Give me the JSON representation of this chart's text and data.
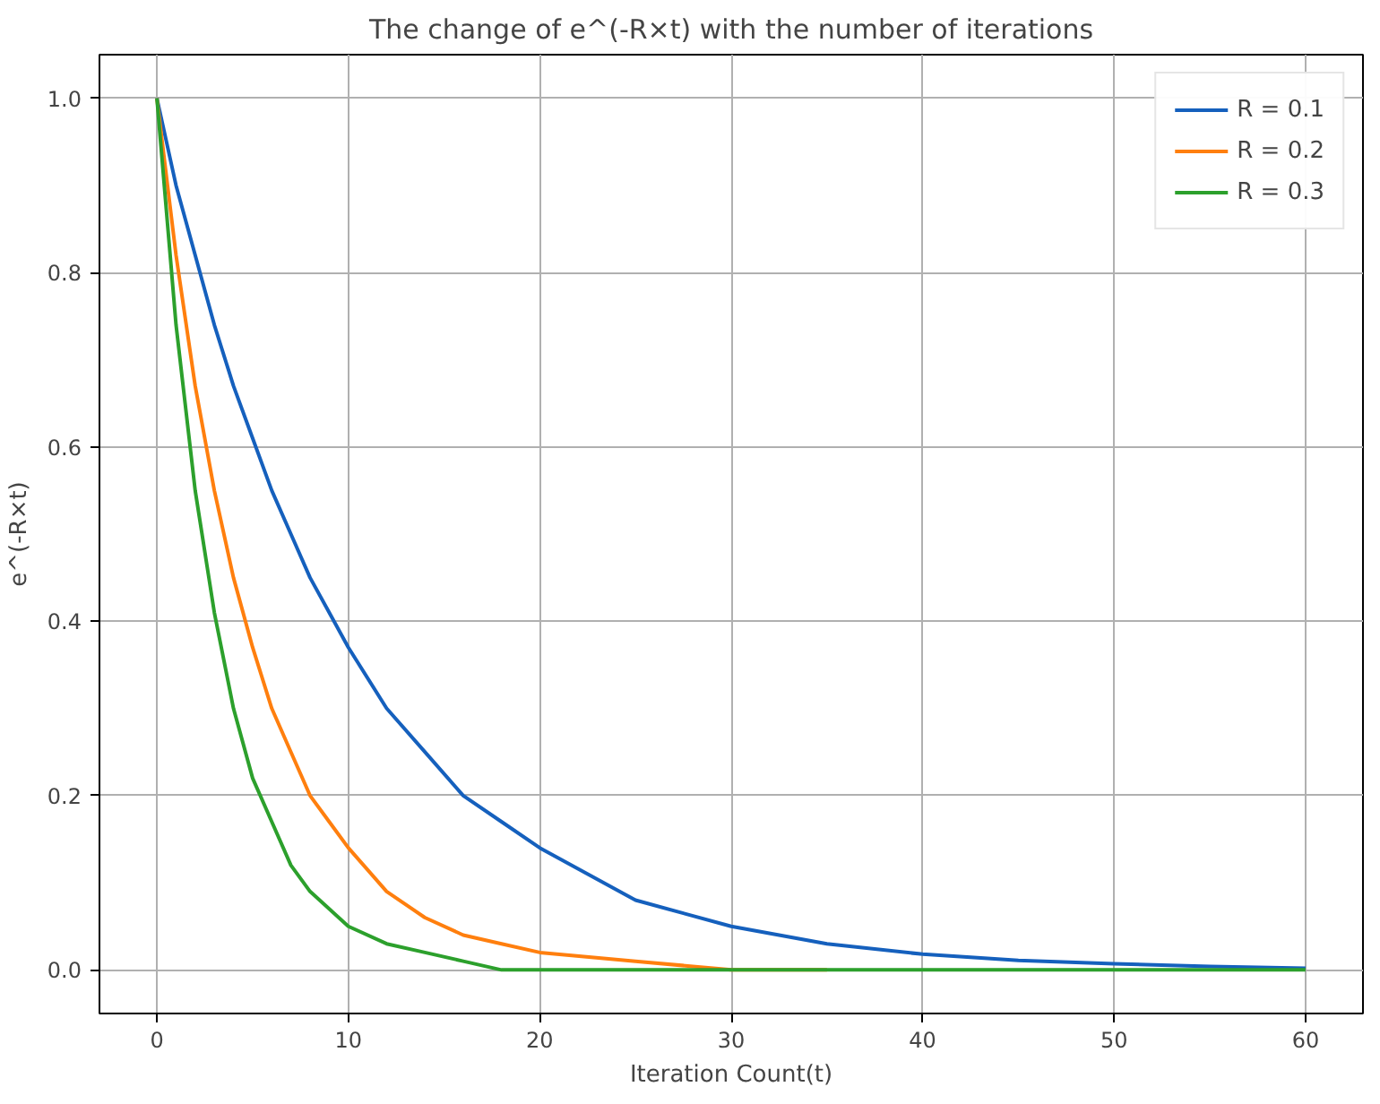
{
  "chart_data": {
    "type": "line",
    "title": "The change of e^(-R×t) with the number of iterations",
    "xlabel": "Iteration Count(t)",
    "ylabel": "e^(-R×t)",
    "x": [
      0,
      1,
      2,
      3,
      4,
      5,
      6,
      7,
      8,
      9,
      10,
      12,
      14,
      16,
      18,
      20,
      25,
      30,
      35,
      40,
      45,
      50,
      55,
      60
    ],
    "series": [
      {
        "name": "R = 0.1",
        "color": "#1560bd",
        "values": [
          1,
          0.9,
          0.82,
          0.74,
          0.67,
          0.61,
          0.55,
          0.5,
          0.45,
          0.41,
          0.37,
          0.3,
          0.25,
          0.2,
          0.17,
          0.14,
          0.08,
          0.05,
          0.03,
          0.018,
          0.011,
          0.007,
          0.004,
          0.002
        ]
      },
      {
        "name": "R = 0.2",
        "color": "#ff7f0e",
        "x": [
          0,
          1,
          2,
          3,
          4,
          5,
          6,
          7,
          8,
          9,
          10,
          12,
          14,
          16,
          18,
          20,
          25,
          30,
          35
        ],
        "values": [
          1,
          0.82,
          0.67,
          0.55,
          0.45,
          0.37,
          0.3,
          0.25,
          0.2,
          0.17,
          0.14,
          0.09,
          0.06,
          0.04,
          0.03,
          0.02,
          0.01,
          0.0,
          0.0
        ]
      },
      {
        "name": "R = 0.3",
        "color": "#2ca02c",
        "values": [
          1,
          0.74,
          0.55,
          0.41,
          0.3,
          0.22,
          0.17,
          0.12,
          0.09,
          0.07,
          0.05,
          0.03,
          0.02,
          0.01,
          0.0,
          0.0,
          0.0,
          0.0,
          0.0,
          0.0,
          0.0,
          0.0,
          0.0,
          0.0
        ]
      }
    ],
    "xlim": [
      -3,
      63
    ],
    "ylim": [
      -0.05,
      1.05
    ],
    "xticks": [
      0,
      10,
      20,
      30,
      40,
      50,
      60
    ],
    "yticks": [
      {
        "value": 0,
        "label": "0.0"
      },
      {
        "value": 0.2,
        "label": "0.2"
      },
      {
        "value": 0.4,
        "label": "0.4"
      },
      {
        "value": 0.6,
        "label": "0.6"
      },
      {
        "value": 0.8,
        "label": "0.8"
      },
      {
        "value": 1,
        "label": "1.0"
      }
    ],
    "grid": true,
    "legend": "top right",
    "line_style": "solid",
    "marker": "none"
  }
}
